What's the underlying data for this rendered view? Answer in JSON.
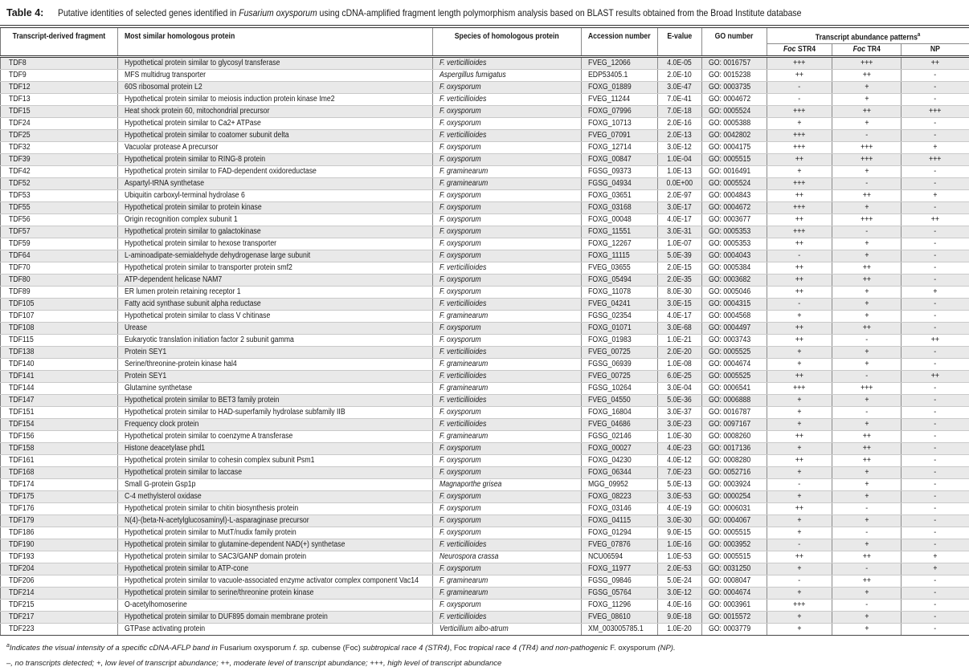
{
  "caption": {
    "label": "Table 4:",
    "segments": [
      {
        "t": "Putative identities of selected genes identified in ",
        "i": false
      },
      {
        "t": "Fusarium oxysporum",
        "i": true
      },
      {
        "t": " using cDNA-amplified fragment length polymorphism analysis based on BLAST results obtained from the Broad Institute database",
        "i": false
      }
    ]
  },
  "table": {
    "columns": [
      {
        "label": "Transcript-derived fragment"
      },
      {
        "label": "Most similar homologous protein"
      },
      {
        "label": "Species of homologous protein"
      },
      {
        "label": "Accession number"
      },
      {
        "label": "E-value"
      },
      {
        "label": "GO number"
      }
    ],
    "abundance_group": {
      "label": "Transcript abundance patterns",
      "sup": "a",
      "subcolumns": [
        {
          "italic": "Foc ",
          "rest": "STR4"
        },
        {
          "italic": "Foc ",
          "rest": "TR4"
        },
        {
          "italic": "",
          "rest": "NP"
        }
      ]
    },
    "rows": [
      [
        "TDF8",
        "Hypothetical protein similar to glycosyl transferase",
        "F. verticillioides",
        "FVEG_12066",
        "4.0E-05",
        "GO: 0016757",
        "+++",
        "+++",
        "++"
      ],
      [
        "TDF9",
        "MFS multidrug transporter",
        "Aspergillus fumigatus",
        "EDP53405.1",
        "2.0E-10",
        "GO: 0015238",
        "++",
        "++",
        "-"
      ],
      [
        "TDF12",
        "60S ribosomal protein L2",
        "F. oxysporum",
        "FOXG_01889",
        "3.0E-47",
        "GO: 0003735",
        "-",
        "+",
        "-"
      ],
      [
        "TDF13",
        "Hypothetical protein similar to meiosis induction protein kinase Ime2",
        "F. verticillioides",
        "FVEG_11244",
        "7.0E-41",
        "GO: 0004672",
        "-",
        "+",
        "-"
      ],
      [
        "TDF15",
        "Heat shock protein 60, mitochondrial precursor",
        "F. oxysporum",
        "FOXG_07996",
        "7.0E-18",
        "GO: 0005524",
        "+++",
        "++",
        "+++"
      ],
      [
        "TDF24",
        "Hypothetical protein similar to Ca2+ ATPase",
        "F. oxysporum",
        "FOXG_10713",
        "2.0E-16",
        "GO: 0005388",
        "+",
        "+",
        "-"
      ],
      [
        "TDF25",
        "Hypothetical protein similar to coatomer subunit delta",
        "F. verticillioides",
        "FVEG_07091",
        "2.0E-13",
        "GO: 0042802",
        "+++",
        "-",
        "-"
      ],
      [
        "TDF32",
        "Vacuolar protease A precursor",
        "F. oxysporum",
        "FOXG_12714",
        "3.0E-12",
        "GO: 0004175",
        "+++",
        "+++",
        "+"
      ],
      [
        "TDF39",
        "Hypothetical protein similar to RING-8 protein",
        "F. oxysporum",
        "FOXG_00847",
        "1.0E-04",
        "GO: 0005515",
        "++",
        "+++",
        "+++"
      ],
      [
        "TDF42",
        "Hypothetical protein similar to FAD-dependent oxidoreductase",
        "F. graminearum",
        "FGSG_09373",
        "1.0E-13",
        "GO: 0016491",
        "+",
        "+",
        "-"
      ],
      [
        "TDF52",
        "Aspartyl-tRNA synthetase",
        "F. graminearum",
        "FGSG_04934",
        "0.0E+00",
        "GO: 0005524",
        "+++",
        "-",
        "-"
      ],
      [
        "TDF53",
        "Ubiquitin carboxyl-terminal hydrolase 6",
        "F. oxysporum",
        "FOXG_03651",
        "2.0E-97",
        "GO: 0004843",
        "++",
        "++",
        "+"
      ],
      [
        "TDF55",
        "Hypothetical protein similar to protein kinase",
        "F. oxysporum",
        "FOXG_03168",
        "3.0E-17",
        "GO: 0004672",
        "+++",
        "+",
        "-"
      ],
      [
        "TDF56",
        "Origin recognition complex subunit 1",
        "F. oxysporum",
        "FOXG_00048",
        "4.0E-17",
        "GO: 0003677",
        "++",
        "+++",
        "++"
      ],
      [
        "TDF57",
        "Hypothetical protein similar to galactokinase",
        "F. oxysporum",
        "FOXG_11551",
        "3.0E-31",
        "GO: 0005353",
        "+++",
        "-",
        "-"
      ],
      [
        "TDF59",
        "Hypothetical protein similar to hexose transporter",
        "F. oxysporum",
        "FOXG_12267",
        "1.0E-07",
        "GO: 0005353",
        "++",
        "+",
        "-"
      ],
      [
        "TDF64",
        "L-aminoadipate-semialdehyde dehydrogenase large subunit",
        "F. oxysporum",
        "FOXG_11115",
        "5.0E-39",
        "GO: 0004043",
        "-",
        "+",
        "-"
      ],
      [
        "TDF70",
        "Hypothetical protein similar to transporter protein smf2",
        "F. verticillioides",
        "FVEG_03655",
        "2.0E-15",
        "GO: 0005384",
        "++",
        "++",
        "-"
      ],
      [
        "TDF80",
        "ATP-dependent helicase NAM7",
        "F. oxysporum",
        "FOXG_05494",
        "2.0E-35",
        "GO: 0003682",
        "++",
        "++",
        "-"
      ],
      [
        "TDF89",
        "ER lumen protein retaining receptor 1",
        "F. oxysporum",
        "FOXG_11078",
        "8.0E-30",
        "GO: 0005046",
        "++",
        "+",
        "+"
      ],
      [
        "TDF105",
        "Fatty acid synthase subunit alpha reductase",
        "F. verticillioides",
        "FVEG_04241",
        "3.0E-15",
        "GO: 0004315",
        "-",
        "+",
        "-"
      ],
      [
        "TDF107",
        "Hypothetical protein similar to class V chitinase",
        "F. graminearum",
        "FGSG_02354",
        "4.0E-17",
        "GO: 0004568",
        "+",
        "+",
        "-"
      ],
      [
        "TDF108",
        "Urease",
        "F. oxysporum",
        "FOXG_01071",
        "3.0E-68",
        "GO: 0004497",
        "++",
        "++",
        "-"
      ],
      [
        "TDF115",
        "Eukaryotic translation initiation factor 2 subunit gamma",
        "F. oxysporum",
        "FOXG_01983",
        "1.0E-21",
        "GO: 0003743",
        "++",
        "-",
        "++"
      ],
      [
        "TDF138",
        "Protein SEY1",
        "F. verticillioides",
        "FVEG_00725",
        "2.0E-20",
        "GO: 0005525",
        "+",
        "+",
        "-"
      ],
      [
        "TDF140",
        "Serine/threonine-protein kinase hal4",
        "F. graminearum",
        "FGSG_06939",
        "1.0E-08",
        "GO: 0004674",
        "+",
        "+",
        "-"
      ],
      [
        "TDF141",
        "Protein SEY1",
        "F. verticillioides",
        "FVEG_00725",
        "6.0E-25",
        "GO: 0005525",
        "++",
        "-",
        "++"
      ],
      [
        "TDF144",
        "Glutamine synthetase",
        "F. graminearum",
        "FGSG_10264",
        "3.0E-04",
        "GO: 0006541",
        "+++",
        "+++",
        "-"
      ],
      [
        "TDF147",
        "Hypothetical protein similar to BET3 family protein",
        "F. verticillioides",
        "FVEG_04550",
        "5.0E-36",
        "GO: 0006888",
        "+",
        "+",
        "-"
      ],
      [
        "TDF151",
        "Hypothetical protein similar to HAD-superfamily hydrolase subfamily IIB",
        "F. oxysporum",
        "FOXG_16804",
        "3.0E-37",
        "GO: 0016787",
        "+",
        "-",
        "-"
      ],
      [
        "TDF154",
        "Frequency clock protein",
        "F. verticillioides",
        "FVEG_04686",
        "3.0E-23",
        "GO: 0097167",
        "+",
        "+",
        "-"
      ],
      [
        "TDF156",
        "Hypothetical protein similar to coenzyme A transferase",
        "F. graminearum",
        "FGSG_02146",
        "1.0E-30",
        "GO: 0008260",
        "++",
        "++",
        "-"
      ],
      [
        "TDF158",
        "Histone deacetylase phd1",
        "F. oxysporum",
        "FOXG_00027",
        "4.0E-23",
        "GO: 0017136",
        "+",
        "++",
        "-"
      ],
      [
        "TDF161",
        "Hypothetical protein similar to cohesin complex subunit Psm1",
        "F. oxysporum",
        "FOXG_04230",
        "4.0E-12",
        "GO: 0008280",
        "++",
        "++",
        "-"
      ],
      [
        "TDF168",
        "Hypothetical protein similar to laccase",
        "F. oxysporum",
        "FOXG_06344",
        "7.0E-23",
        "GO: 0052716",
        "+",
        "+",
        "-"
      ],
      [
        "TDF174",
        "Small G-protein Gsp1p",
        "Magnaporthe grisea",
        "MGG_09952",
        "5.0E-13",
        "GO: 0003924",
        "-",
        "+",
        "-"
      ],
      [
        "TDF175",
        "C-4 methylsterol oxidase",
        "F. oxysporum",
        "FOXG_08223",
        "3.0E-53",
        "GO: 0000254",
        "+",
        "+",
        "-"
      ],
      [
        "TDF176",
        "Hypothetical protein similar to chitin biosynthesis protein",
        "F. oxysporum",
        "FOXG_03146",
        "4.0E-19",
        "GO: 0006031",
        "++",
        "-",
        "-"
      ],
      [
        "TDF179",
        "N(4)-(beta-N-acetylglucosaminyl)-L-asparaginase precursor",
        "F. oxysporum",
        "FOXG_04115",
        "3.0E-30",
        "GO: 0004067",
        "+",
        "+",
        "-"
      ],
      [
        "TDF186",
        "Hypothetical protein similar to MutT/nudix family protein",
        "F. oxysporum",
        "FOXG_01294",
        "9.0E-15",
        "GO: 0005515",
        "+",
        "-",
        "-"
      ],
      [
        "TDF190",
        "Hypothetical protein similar to glutamine-dependent NAD(+) synthetase",
        "F. verticillioides",
        "FVEG_07876",
        "1.0E-16",
        "GO: 0003952",
        "-",
        "+",
        "-"
      ],
      [
        "TDF193",
        "Hypothetical protein similar to SAC3/GANP domain protein",
        "Neurospora crassa",
        "NCU06594",
        "1.0E-53",
        "GO: 0005515",
        "++",
        "++",
        "+"
      ],
      [
        "TDF204",
        "Hypothetical protein similar to ATP-cone",
        "F. oxysporum",
        "FOXG_11977",
        "2.0E-53",
        "GO: 0031250",
        "+",
        "-",
        "+"
      ],
      [
        "TDF206",
        "Hypothetical protein similar to vacuole-associated enzyme activator complex component Vac14",
        "F. graminearum",
        "FGSG_09846",
        "5.0E-24",
        "GO: 0008047",
        "-",
        "++",
        "-"
      ],
      [
        "TDF214",
        "Hypothetical protein similar to serine/threonine protein kinase",
        "F. graminearum",
        "FGSG_05764",
        "3.0E-12",
        "GO: 0004674",
        "+",
        "+",
        "-"
      ],
      [
        "TDF215",
        "O-acetylhomoserine",
        "F. oxysporum",
        "FOXG_11296",
        "4.0E-16",
        "GO: 0003961",
        "+++",
        "-",
        "-"
      ],
      [
        "TDF217",
        "Hypothetical protein similar to DUF895 domain membrane protein",
        "F. verticillioides",
        "FVEG_08610",
        "9.0E-18",
        "GO: 0015572",
        "+",
        "+",
        "-"
      ],
      [
        "TDF223",
        "GTPase activating protein",
        "Verticillium albo-atrum",
        "XM_003005785.1",
        "1.0E-20",
        "GO: 0003779",
        "+",
        "+",
        "-"
      ]
    ]
  },
  "footnotes": {
    "a": [
      {
        "t": "a",
        "i": true,
        "sup": true
      },
      {
        "t": "Indicates the visual intensity of a specific cDNA-AFLP band in ",
        "i": true
      },
      {
        "t": "Fusarium oxysporum ",
        "i": false
      },
      {
        "t": "f. sp. ",
        "i": true
      },
      {
        "t": "cubense (Foc) ",
        "i": false
      },
      {
        "t": "subtropical race 4 (STR4)",
        "i": true
      },
      {
        "t": ", Foc ",
        "i": false
      },
      {
        "t": "tropical race 4 (TR4)",
        "i": true
      },
      {
        "t": " and non-pathogenic ",
        "i": true
      },
      {
        "t": "F. oxysporum ",
        "i": false
      },
      {
        "t": "(NP).",
        "i": true
      }
    ],
    "key": [
      {
        "t": "–, no transcripts detected; +, low level of transcript abundance; ++, moderate level of transcript abundance; +++, high level of transcript abundance",
        "i": true
      }
    ]
  }
}
